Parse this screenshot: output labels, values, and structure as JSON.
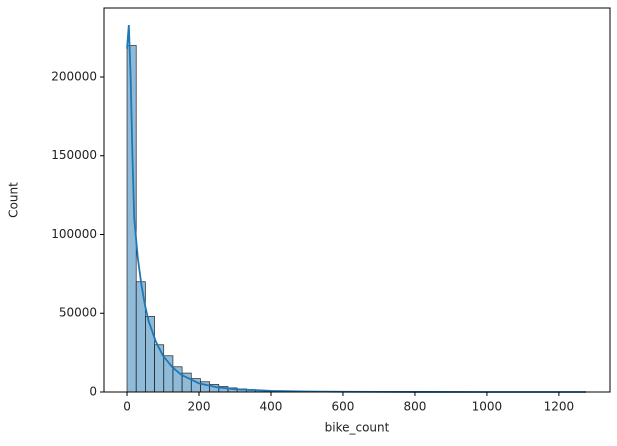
{
  "chart_data": {
    "type": "histogram",
    "xlabel": "bike_count",
    "ylabel": "Count",
    "bins": [
      0,
      25.5,
      51,
      76.5,
      102,
      127.5,
      153,
      178.5,
      204,
      229.5,
      255,
      280.5,
      306,
      331.5,
      357,
      382.5,
      408,
      433.5,
      459,
      484.5,
      510,
      535.5,
      561,
      586.5,
      612,
      637.5,
      663,
      688.5,
      714,
      739.5,
      765,
      790.5,
      816,
      841.5,
      867,
      892.5,
      918,
      943.5,
      969,
      994.5,
      1020,
      1045.5,
      1071,
      1096.5,
      1122,
      1147.5,
      1173,
      1198.5,
      1224,
      1249.5,
      1275
    ],
    "counts": [
      220000,
      70000,
      48000,
      30000,
      23000,
      16000,
      12000,
      8500,
      6500,
      4800,
      3500,
      2600,
      2000,
      1500,
      1100,
      800,
      600,
      450,
      350,
      250,
      200,
      150,
      120,
      100,
      80,
      60,
      50,
      40,
      30,
      25,
      20,
      15,
      12,
      10,
      8,
      6,
      5,
      4,
      3,
      3,
      2,
      2,
      1,
      1,
      1,
      1,
      0,
      0,
      1,
      1
    ],
    "color": "#1f77b4",
    "kde": {
      "x": [
        0,
        5,
        10,
        15,
        20,
        30,
        40,
        50,
        60,
        80,
        100,
        125,
        150,
        200,
        250,
        300,
        400,
        500,
        600,
        800,
        1000,
        1200,
        1275
      ],
      "y": [
        218000,
        233000,
        200000,
        150000,
        110000,
        85000,
        68000,
        55000,
        45000,
        32000,
        23000,
        16000,
        11000,
        5500,
        3000,
        1800,
        700,
        300,
        150,
        50,
        20,
        10,
        5
      ]
    },
    "xlim": [
      -64,
      1342
    ],
    "ylim": [
      0,
      243800
    ],
    "xticks": [
      0,
      200,
      400,
      600,
      800,
      1000,
      1200
    ],
    "yticks": [
      0,
      50000,
      100000,
      150000,
      200000
    ]
  }
}
